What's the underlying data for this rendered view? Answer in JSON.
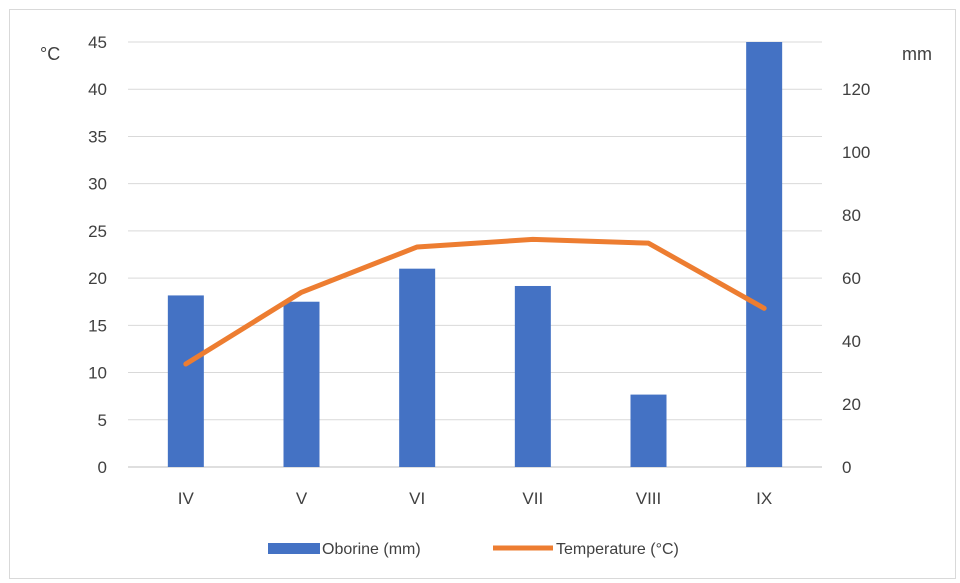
{
  "chart_data": {
    "type": "bar",
    "categories": [
      "IV",
      "V",
      "VI",
      "VII",
      "VIII",
      "IX"
    ],
    "series": [
      {
        "name": "Oborine (mm)",
        "type": "bar",
        "axis": "right",
        "color": "#4472c4",
        "values": [
          54.5,
          52.5,
          63.0,
          57.5,
          23.0,
          135.0
        ]
      },
      {
        "name": "Temperature (°C)",
        "type": "line",
        "axis": "left",
        "color": "#ed7d31",
        "values": [
          10.9,
          18.5,
          23.3,
          24.1,
          23.7,
          16.8
        ]
      }
    ],
    "left_axis": {
      "unit": "°C",
      "min": 0,
      "max": 45,
      "step": 5,
      "ticks": [
        "0",
        "5",
        "10",
        "15",
        "20",
        "25",
        "30",
        "35",
        "40",
        "45"
      ]
    },
    "right_axis": {
      "unit": "mm",
      "min": 0,
      "max": 135,
      "step": 20,
      "ticks": [
        "0",
        "20",
        "40",
        "60",
        "80",
        "100",
        "120"
      ]
    },
    "grid": true,
    "legend_position": "bottom"
  }
}
